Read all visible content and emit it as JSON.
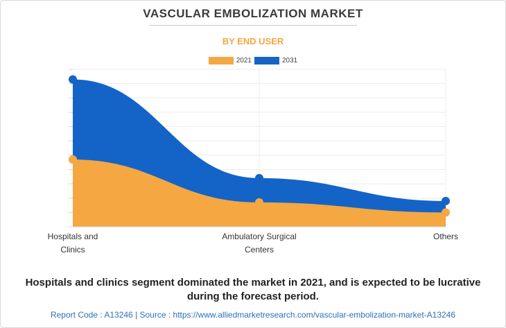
{
  "header": {
    "title": "VASCULAR EMBOLIZATION MARKET",
    "subtitle": "BY END USER"
  },
  "chart_data": {
    "type": "area",
    "categories": [
      "Hospitals and Clinics",
      "Ambulatory Surgical Centers",
      "Others"
    ],
    "category_lines": [
      [
        "Hospitals and",
        "Clinics"
      ],
      [
        "Ambulatory Surgical",
        "Centers"
      ],
      [
        "Others"
      ]
    ],
    "series": [
      {
        "name": "2021",
        "values": [
          47,
          17,
          10
        ],
        "color": "#f5a742"
      },
      {
        "name": "2031",
        "values": [
          103,
          34,
          18
        ],
        "color": "#1464c8"
      }
    ],
    "ylim": [
      0,
      110
    ],
    "grid": true,
    "legend": "top-center",
    "xlabel": "",
    "ylabel": ""
  },
  "summary": {
    "line1": "Hospitals and clinics segment dominated the market in 2021, and is expected to be lucrative",
    "line2": "during the forecast period."
  },
  "footer": {
    "text": "Report Code : A13246  |  Source : https://www.alliedmarketresearch.com/vascular-embolization-market-A13246"
  }
}
